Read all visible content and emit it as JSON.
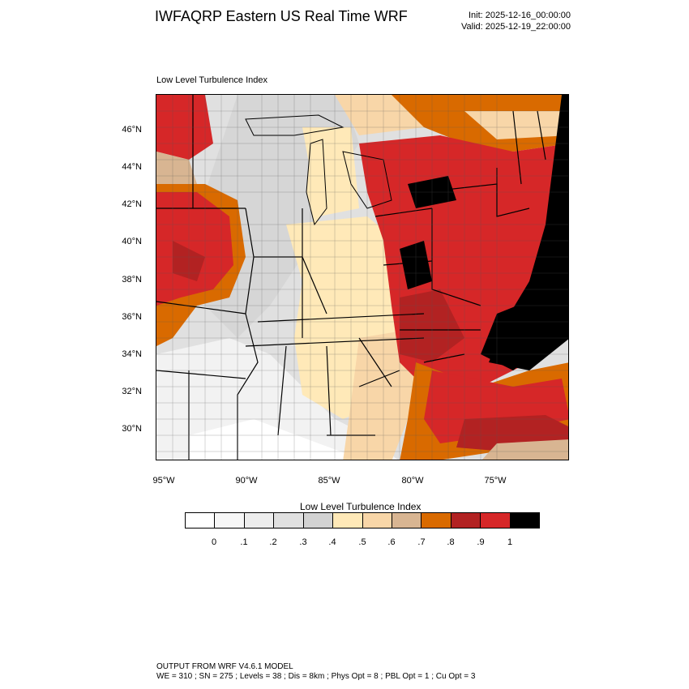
{
  "header": {
    "title": "IWFAQRP Eastern US Real Time WRF",
    "init": "Init: 2025-12-16_00:00:00",
    "valid": "Valid: 2025-12-19_22:00:00"
  },
  "panel": {
    "title": "Low Level Turbulence Index",
    "lat_labels": [
      "46°N",
      "44°N",
      "42°N",
      "40°N",
      "38°N",
      "36°N",
      "34°N",
      "32°N",
      "30°N"
    ],
    "lon_labels": [
      "95°W",
      "90°W",
      "85°W",
      "80°W",
      "75°W"
    ]
  },
  "legend": {
    "title": "Low Level Turbulence Index",
    "colors": [
      "#ffffff",
      "#f7f7f7",
      "#ededed",
      "#e0e0e0",
      "#d2d2d2",
      "#ffe9b8",
      "#f8d6a8",
      "#d8b592",
      "#d96a00",
      "#b22222",
      "#d62728",
      "#000000"
    ],
    "ticks": [
      "0",
      ".1",
      ".2",
      ".3",
      ".4",
      ".5",
      ".6",
      ".7",
      ".8",
      ".9",
      "1"
    ]
  },
  "footer": {
    "line1": "OUTPUT FROM WRF V4.6.1 MODEL",
    "line2": "WE = 310 ; SN = 275 ; Levels = 38 ; Dis = 8km ; Phys Opt = 8 ; PBL Opt = 1 ; Cu Opt = 3"
  }
}
